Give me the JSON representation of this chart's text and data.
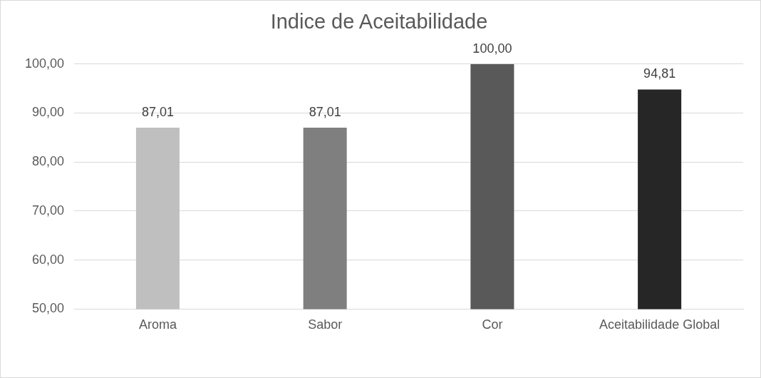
{
  "chart_data": {
    "type": "bar",
    "title": "Indice de Aceitabilidade",
    "categories": [
      "Aroma",
      "Sabor",
      "Cor",
      "Aceitabilidade Global"
    ],
    "values": [
      87.01,
      87.01,
      100,
      94.81
    ],
    "colors": [
      "#bfbfbf",
      "#7f7f7f",
      "#595959",
      "#262626"
    ],
    "value_labels": [
      "87,01",
      "87,01",
      "100,00",
      "94,81"
    ],
    "ylim": [
      50,
      100
    ],
    "yticks": [
      {
        "value": 50,
        "label": "50,00"
      },
      {
        "value": 60,
        "label": "60,00"
      },
      {
        "value": 70,
        "label": "70,00"
      },
      {
        "value": 80,
        "label": "80,00"
      },
      {
        "value": 90,
        "label": "90,00"
      },
      {
        "value": 100,
        "label": "100,00"
      }
    ],
    "grid": "y"
  }
}
